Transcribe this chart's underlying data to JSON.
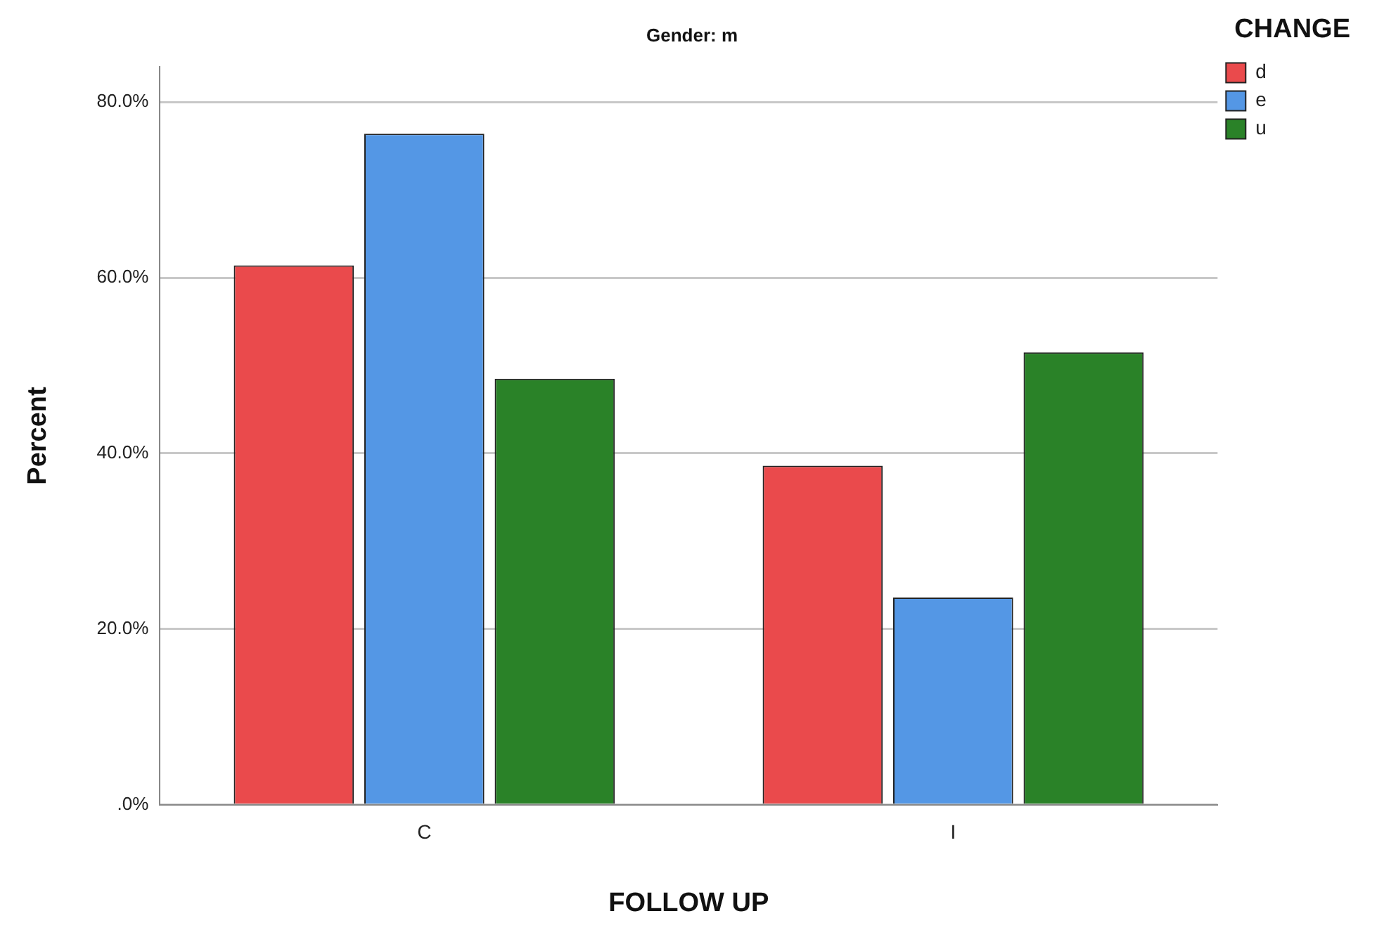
{
  "chart_data": {
    "type": "bar",
    "title": "Gender: m",
    "xlabel": "FOLLOW UP",
    "ylabel": "Percent",
    "legend_title": "CHANGE",
    "categories": [
      "C",
      "I"
    ],
    "series": [
      {
        "name": "d",
        "color": "#ea4a4c",
        "values": [
          61.4,
          38.6
        ]
      },
      {
        "name": "e",
        "color": "#5497e5",
        "values": [
          76.4,
          23.6
        ]
      },
      {
        "name": "u",
        "color": "#2a8228",
        "values": [
          48.5,
          51.5
        ]
      }
    ],
    "ylim": [
      0,
      84
    ],
    "yticks": [
      {
        "value": 0,
        "label": ".0%"
      },
      {
        "value": 20,
        "label": "20.0%"
      },
      {
        "value": 40,
        "label": "40.0%"
      },
      {
        "value": 60,
        "label": "60.0%"
      },
      {
        "value": 80,
        "label": "80.0%"
      }
    ],
    "grid": "y",
    "legend": "top right"
  }
}
